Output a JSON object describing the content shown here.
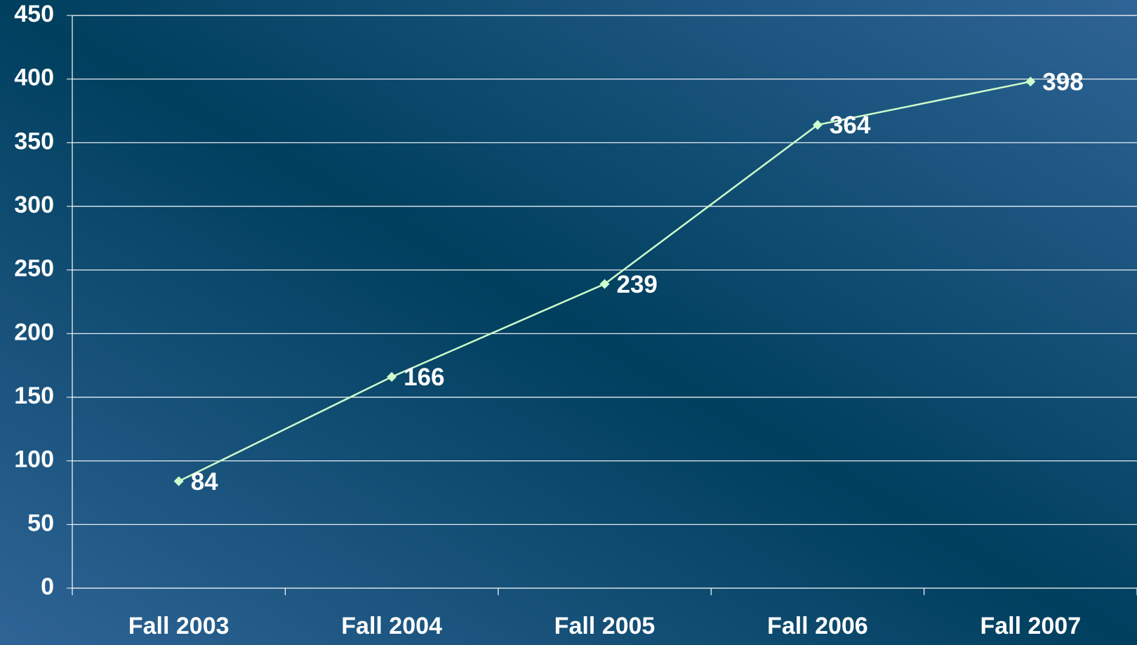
{
  "chart_data": {
    "type": "line",
    "categories": [
      "Fall 2003",
      "Fall 2004",
      "Fall 2005",
      "Fall 2006",
      "Fall 2007"
    ],
    "values": [
      84,
      166,
      239,
      364,
      398
    ],
    "color": "#ccffcc",
    "ylim": [
      0,
      450
    ],
    "yticks": [
      0,
      50,
      100,
      150,
      200,
      250,
      300,
      350,
      400,
      450
    ],
    "grid": true
  }
}
